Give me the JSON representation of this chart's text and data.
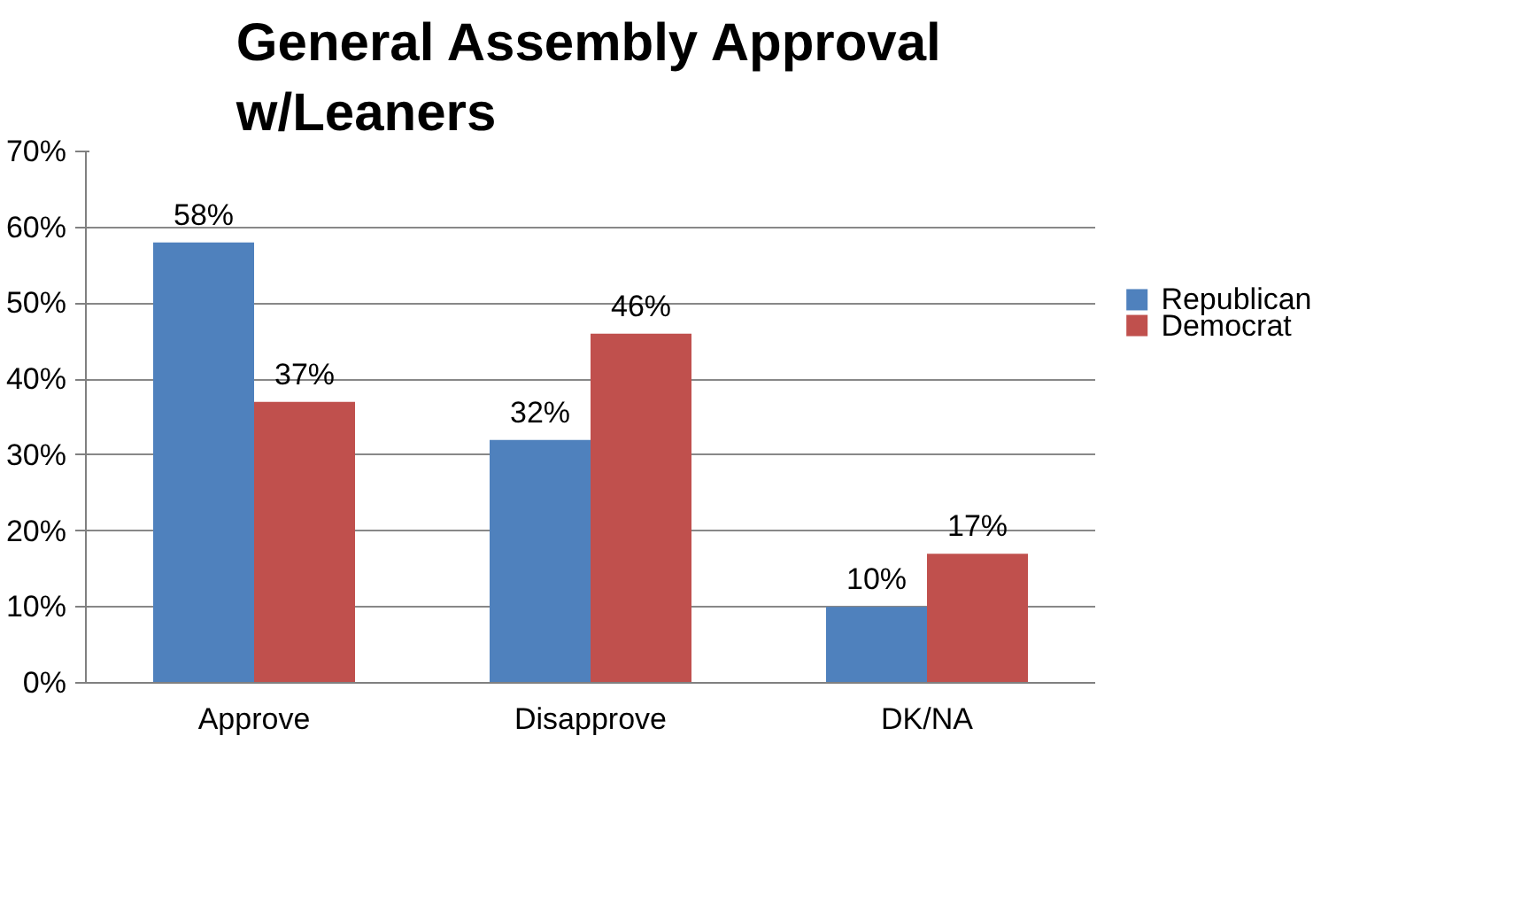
{
  "chart_data": {
    "type": "bar",
    "title": "General Assembly Approval w/Leaners",
    "categories": [
      "Approve",
      "Disapprove",
      "DK/NA"
    ],
    "series": [
      {
        "name": "Republican",
        "color": "#4f81bd",
        "values": [
          58,
          32,
          10
        ],
        "value_labels": [
          "58%",
          "32%",
          "10%"
        ]
      },
      {
        "name": "Democrat",
        "color": "#c0504d",
        "values": [
          37,
          46,
          17
        ],
        "value_labels": [
          "37%",
          "46%",
          "17%"
        ]
      }
    ],
    "ylim": [
      0,
      70
    ],
    "yticks": [
      {
        "value": 0,
        "label": "0%"
      },
      {
        "value": 10,
        "label": "10%"
      },
      {
        "value": 20,
        "label": "20%"
      },
      {
        "value": 30,
        "label": "30%"
      },
      {
        "value": 40,
        "label": "40%"
      },
      {
        "value": 50,
        "label": "50%"
      },
      {
        "value": 60,
        "label": "60%"
      },
      {
        "value": 70,
        "label": "70%"
      }
    ],
    "grid": "y",
    "legend": "right"
  }
}
